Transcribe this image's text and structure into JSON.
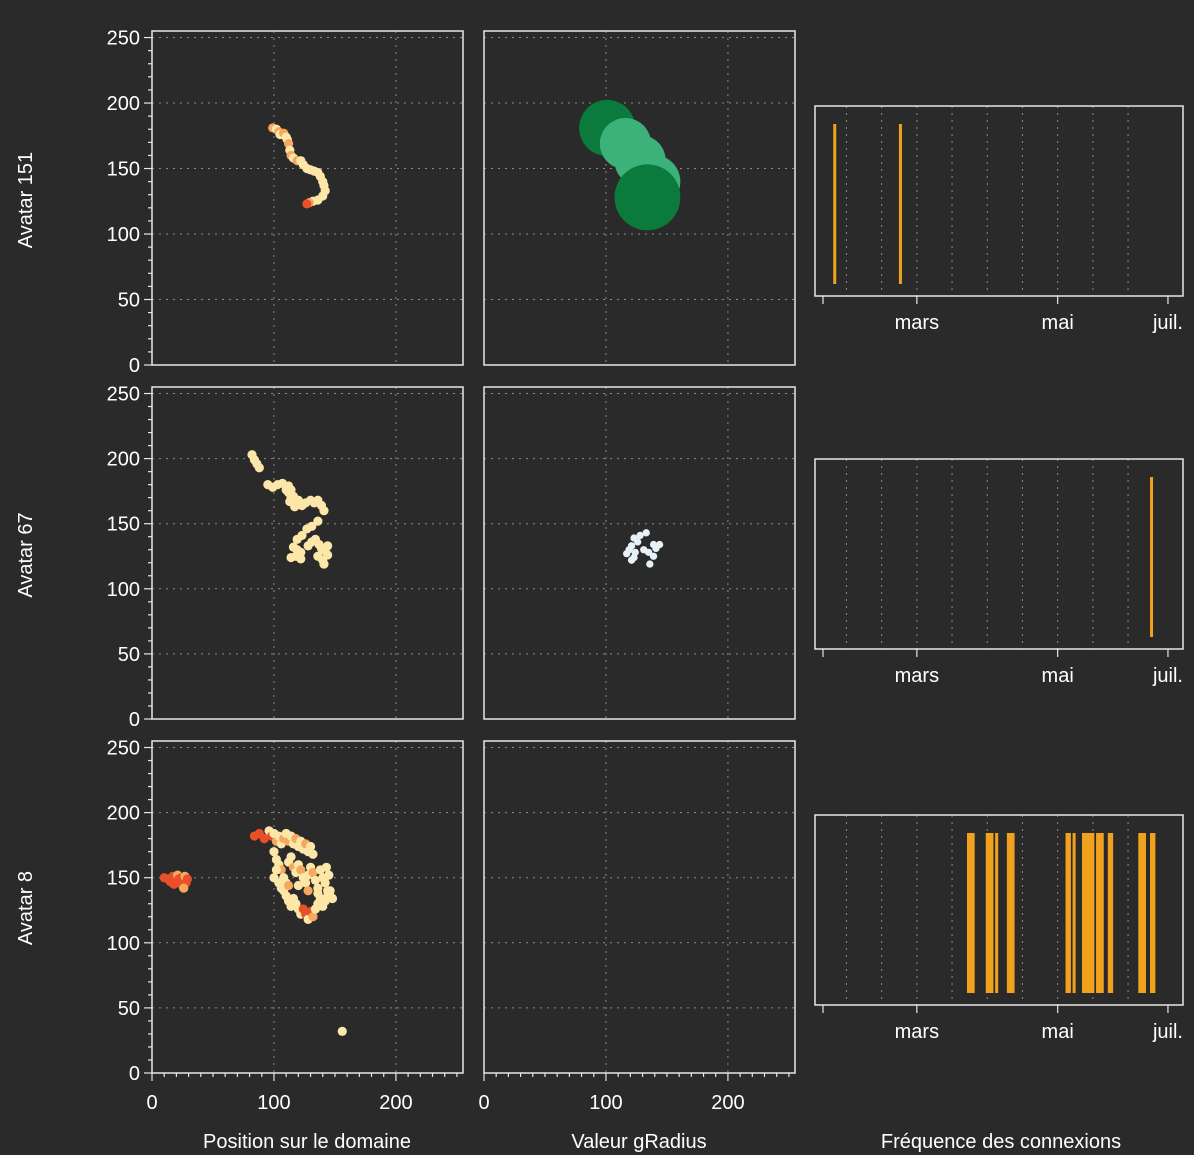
{
  "chart_data": {
    "type": "scatter",
    "layout": "3x3 grid",
    "rows": [
      "Avatar 151",
      "Avatar 67",
      "Avatar 8"
    ],
    "column_labels": [
      "Position sur le domaine",
      "Valeur gRadius",
      "Fréquence des connexions"
    ],
    "x_axis": {
      "range": [
        0,
        255
      ],
      "ticks": [
        0,
        100,
        200
      ]
    },
    "y_axis": {
      "range": [
        0,
        255
      ],
      "ticks": [
        0,
        50,
        100,
        150,
        200,
        250
      ]
    },
    "time_axis": {
      "range_days": [
        0,
        150
      ],
      "ticks": [
        {
          "day": 40,
          "label": "mars"
        },
        {
          "day": 100,
          "label": "mai"
        },
        {
          "day": 147,
          "label": "juil."
        }
      ]
    },
    "colors": {
      "background": "#2a2a2a",
      "bar": "#f0a21e",
      "position_light": "#fde7a8",
      "position_mid": "#f6a85e",
      "position_dark": "#e8502a",
      "radius_light": "#3cb27a",
      "radius_dark": "#0b7a3d",
      "radius_small": "#e6f2f8"
    },
    "position": [
      {
        "avatar": "Avatar 151",
        "points": [
          [
            99,
            181,
            "mid"
          ],
          [
            102,
            180,
            "light"
          ],
          [
            104,
            178,
            "mid"
          ],
          [
            105,
            176,
            "light"
          ],
          [
            108,
            177,
            "mid"
          ],
          [
            110,
            174,
            "light"
          ],
          [
            111,
            172,
            "light"
          ],
          [
            112,
            169,
            "mid"
          ],
          [
            113,
            164,
            "light"
          ],
          [
            114,
            160,
            "mid"
          ],
          [
            116,
            158,
            "light"
          ],
          [
            119,
            156,
            "mid"
          ],
          [
            122,
            156,
            "light"
          ],
          [
            124,
            153,
            "light"
          ],
          [
            127,
            150,
            "light"
          ],
          [
            130,
            149,
            "light"
          ],
          [
            133,
            148,
            "light"
          ],
          [
            136,
            147,
            "light"
          ],
          [
            138,
            144,
            "light"
          ],
          [
            140,
            140,
            "light"
          ],
          [
            141,
            137,
            "light"
          ],
          [
            142,
            133,
            "light"
          ],
          [
            140,
            129,
            "light"
          ],
          [
            136,
            126,
            "light"
          ],
          [
            132,
            125,
            "light"
          ],
          [
            129,
            124,
            "mid"
          ],
          [
            127,
            123,
            "dark"
          ]
        ]
      },
      {
        "avatar": "Avatar 67",
        "points": [
          [
            82,
            203,
            "light"
          ],
          [
            84,
            199,
            "light"
          ],
          [
            86,
            196,
            "light"
          ],
          [
            88,
            193,
            "light"
          ],
          [
            95,
            180,
            "light"
          ],
          [
            99,
            178,
            "light"
          ],
          [
            103,
            180,
            "light"
          ],
          [
            107,
            181,
            "light"
          ],
          [
            110,
            176,
            "light"
          ],
          [
            112,
            179,
            "light"
          ],
          [
            114,
            176,
            "light"
          ],
          [
            112,
            174,
            "light"
          ],
          [
            114,
            170,
            "light"
          ],
          [
            116,
            171,
            "light"
          ],
          [
            113,
            167,
            "light"
          ],
          [
            117,
            163,
            "light"
          ],
          [
            120,
            168,
            "light"
          ],
          [
            123,
            164,
            "light"
          ],
          [
            126,
            166,
            "light"
          ],
          [
            130,
            168,
            "light"
          ],
          [
            133,
            166,
            "light"
          ],
          [
            136,
            168,
            "light"
          ],
          [
            139,
            164,
            "light"
          ],
          [
            141,
            160,
            "light"
          ],
          [
            136,
            152,
            "light"
          ],
          [
            131,
            148,
            "light"
          ],
          [
            127,
            146,
            "light"
          ],
          [
            123,
            141,
            "light"
          ],
          [
            119,
            138,
            "light"
          ],
          [
            116,
            132,
            "light"
          ],
          [
            119,
            130,
            "light"
          ],
          [
            122,
            128,
            "light"
          ],
          [
            118,
            125,
            "light"
          ],
          [
            114,
            124,
            "light"
          ],
          [
            122,
            123,
            "light"
          ],
          [
            128,
            133,
            "light"
          ],
          [
            131,
            136,
            "light"
          ],
          [
            134,
            138,
            "light"
          ],
          [
            137,
            134,
            "light"
          ],
          [
            139,
            131,
            "light"
          ],
          [
            142,
            129,
            "light"
          ],
          [
            144,
            126,
            "light"
          ],
          [
            140,
            122,
            "light"
          ],
          [
            136,
            125,
            "light"
          ],
          [
            141,
            119,
            "light"
          ],
          [
            144,
            133,
            "light"
          ]
        ]
      },
      {
        "avatar": "Avatar 8",
        "points": [
          [
            10,
            150,
            "dark"
          ],
          [
            13,
            149,
            "dark"
          ],
          [
            15,
            147,
            "dark"
          ],
          [
            17,
            151,
            "dark"
          ],
          [
            18,
            145,
            "dark"
          ],
          [
            20,
            148,
            "dark"
          ],
          [
            21,
            152,
            "mid"
          ],
          [
            22,
            149,
            "dark"
          ],
          [
            23,
            146,
            "dark"
          ],
          [
            24,
            150,
            "dark"
          ],
          [
            25,
            144,
            "dark"
          ],
          [
            26,
            148,
            "dark"
          ],
          [
            27,
            151,
            "mid"
          ],
          [
            28,
            146,
            "dark"
          ],
          [
            29,
            149,
            "dark"
          ],
          [
            26,
            142,
            "mid"
          ],
          [
            84,
            182,
            "dark"
          ],
          [
            88,
            184,
            "dark"
          ],
          [
            92,
            180,
            "dark"
          ],
          [
            96,
            186,
            "light"
          ],
          [
            98,
            182,
            "dark"
          ],
          [
            100,
            184,
            "light"
          ],
          [
            102,
            178,
            "mid"
          ],
          [
            104,
            182,
            "light"
          ],
          [
            106,
            176,
            "light"
          ],
          [
            108,
            180,
            "mid"
          ],
          [
            110,
            184,
            "light"
          ],
          [
            112,
            178,
            "mid"
          ],
          [
            114,
            182,
            "light"
          ],
          [
            116,
            176,
            "light"
          ],
          [
            118,
            180,
            "mid"
          ],
          [
            120,
            174,
            "light"
          ],
          [
            122,
            178,
            "light"
          ],
          [
            124,
            172,
            "light"
          ],
          [
            126,
            176,
            "mid"
          ],
          [
            128,
            170,
            "light"
          ],
          [
            130,
            174,
            "light"
          ],
          [
            132,
            168,
            "light"
          ],
          [
            100,
            170,
            "light"
          ],
          [
            102,
            164,
            "light"
          ],
          [
            104,
            160,
            "light"
          ],
          [
            106,
            156,
            "mid"
          ],
          [
            108,
            150,
            "light"
          ],
          [
            110,
            146,
            "light"
          ],
          [
            112,
            162,
            "light"
          ],
          [
            114,
            166,
            "light"
          ],
          [
            116,
            158,
            "mid"
          ],
          [
            118,
            154,
            "light"
          ],
          [
            120,
            160,
            "light"
          ],
          [
            122,
            156,
            "mid"
          ],
          [
            124,
            150,
            "light"
          ],
          [
            126,
            146,
            "light"
          ],
          [
            128,
            152,
            "light"
          ],
          [
            130,
            158,
            "light"
          ],
          [
            132,
            154,
            "mid"
          ],
          [
            134,
            148,
            "light"
          ],
          [
            136,
            142,
            "light"
          ],
          [
            138,
            156,
            "light"
          ],
          [
            140,
            150,
            "light"
          ],
          [
            142,
            146,
            "light"
          ],
          [
            144,
            140,
            "light"
          ],
          [
            146,
            136,
            "light"
          ],
          [
            143,
            158,
            "light"
          ],
          [
            145,
            152,
            "light"
          ],
          [
            108,
            140,
            "light"
          ],
          [
            110,
            136,
            "light"
          ],
          [
            112,
            132,
            "light"
          ],
          [
            114,
            128,
            "light"
          ],
          [
            116,
            134,
            "light"
          ],
          [
            118,
            130,
            "light"
          ],
          [
            120,
            126,
            "light"
          ],
          [
            122,
            122,
            "light"
          ],
          [
            124,
            126,
            "dark"
          ],
          [
            126,
            122,
            "dark"
          ],
          [
            128,
            118,
            "light"
          ],
          [
            130,
            124,
            "dark"
          ],
          [
            132,
            120,
            "mid"
          ],
          [
            134,
            126,
            "light"
          ],
          [
            136,
            130,
            "light"
          ],
          [
            138,
            134,
            "light"
          ],
          [
            140,
            128,
            "light"
          ],
          [
            142,
            132,
            "light"
          ],
          [
            144,
            136,
            "light"
          ],
          [
            146,
            140,
            "light"
          ],
          [
            148,
            134,
            "light"
          ],
          [
            104,
            146,
            "light"
          ],
          [
            106,
            142,
            "light"
          ],
          [
            100,
            150,
            "light"
          ],
          [
            102,
            156,
            "light"
          ],
          [
            112,
            144,
            "mid"
          ],
          [
            120,
            144,
            "light"
          ],
          [
            128,
            140,
            "mid"
          ],
          [
            136,
            138,
            "light"
          ],
          [
            156,
            32,
            "light"
          ]
        ]
      }
    ],
    "radius": [
      {
        "avatar": "Avatar 151",
        "points": [
          [
            101,
            181,
            "dark",
            23
          ],
          [
            116,
            169,
            "light",
            21
          ],
          [
            128,
            156,
            "light",
            21
          ],
          [
            139,
            140,
            "light",
            22
          ],
          [
            134,
            128,
            "dark",
            27
          ]
        ]
      },
      {
        "avatar": "Avatar 67",
        "points": [
          [
            117,
            127,
            "small",
            3
          ],
          [
            119,
            130,
            "small",
            3
          ],
          [
            121,
            133,
            "small",
            3
          ],
          [
            124,
            128,
            "small",
            3
          ],
          [
            126,
            136,
            "small",
            3
          ],
          [
            123,
            139,
            "small",
            3
          ],
          [
            128,
            141,
            "small",
            3
          ],
          [
            133,
            143,
            "small",
            3
          ],
          [
            131,
            130,
            "small",
            3
          ],
          [
            135,
            128,
            "small",
            3
          ],
          [
            139,
            134,
            "small",
            3
          ],
          [
            141,
            131,
            "small",
            3
          ],
          [
            144,
            134,
            "small",
            3
          ],
          [
            139,
            125,
            "small",
            3
          ],
          [
            136,
            119,
            "small",
            3
          ],
          [
            123,
            124,
            "small",
            3
          ],
          [
            121,
            122,
            "small",
            3
          ]
        ]
      },
      {
        "avatar": "Avatar 8",
        "points": []
      }
    ],
    "connections": [
      {
        "avatar": "Avatar 151",
        "days": [
          5,
          33
        ],
        "bar_width": 3
      },
      {
        "avatar": "Avatar 67",
        "days": [
          140
        ],
        "bar_width": 3
      },
      {
        "avatar": "Avatar 8",
        "days": [
          62,
          63,
          64,
          70,
          71,
          72,
          74,
          79,
          80,
          81,
          104,
          105,
          107,
          111,
          112,
          113,
          114,
          115,
          117,
          118,
          119,
          122,
          123,
          135,
          136,
          137,
          140,
          141
        ],
        "bar_width": 3
      }
    ]
  }
}
